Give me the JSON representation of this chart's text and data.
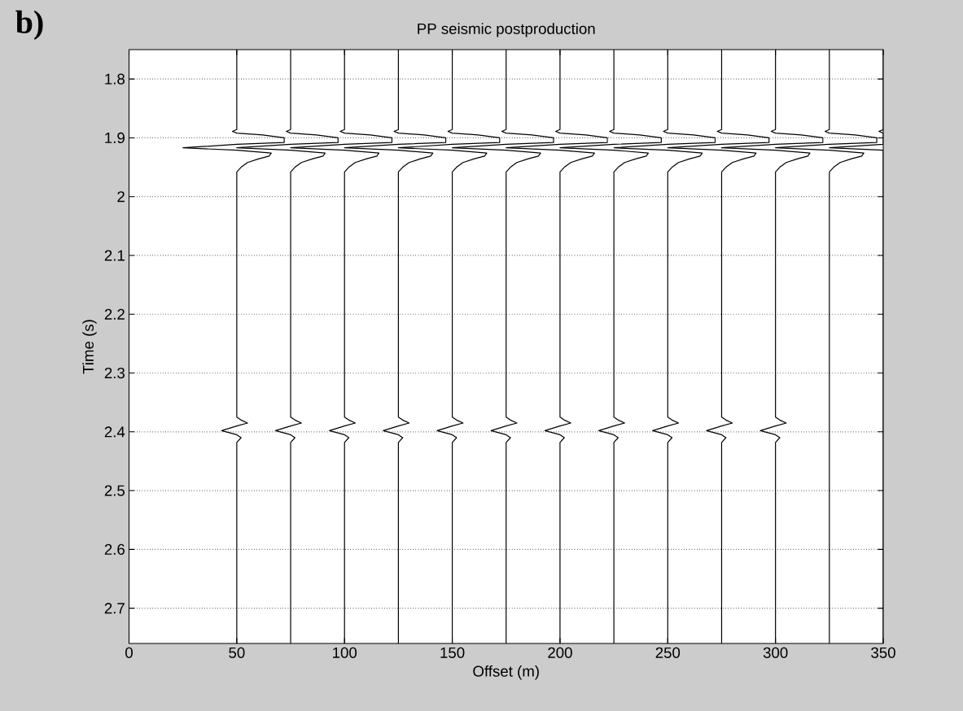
{
  "chart_data": {
    "type": "line",
    "title": "PP seismic postproduction",
    "xlabel": "Offset (m)",
    "ylabel": "Time (s)",
    "annotations": [
      "b)"
    ],
    "xlim": [
      0,
      350
    ],
    "ylim": [
      2.76,
      1.75
    ],
    "xticks": [
      0,
      50,
      100,
      150,
      200,
      250,
      300,
      350
    ],
    "yticks": [
      1.8,
      1.9,
      {
        "value": 2.0,
        "label": "2"
      },
      2.1,
      2.2,
      2.3,
      2.4,
      2.5,
      2.6,
      2.7
    ],
    "grid": "y",
    "color": "#000000",
    "series": [
      {
        "x": [
          50,
          50,
          48,
          50,
          62,
          72,
          72,
          50,
          25,
          50,
          66,
          65,
          60,
          55,
          52,
          50,
          50,
          52,
          55,
          50,
          43,
          50,
          52,
          50,
          50
        ],
        "values": [
          1.75,
          1.886,
          1.889,
          1.892,
          1.895,
          1.9,
          1.908,
          1.911,
          1.917,
          1.921,
          1.926,
          1.931,
          1.936,
          1.942,
          1.95,
          1.958,
          2.375,
          2.38,
          2.385,
          2.39,
          2.398,
          2.405,
          2.41,
          2.418,
          2.76
        ]
      },
      {
        "x": [
          75,
          75,
          73,
          75,
          87,
          97,
          97,
          75,
          50,
          75,
          91,
          90,
          85,
          80,
          77,
          75,
          75,
          77,
          80,
          75,
          68,
          75,
          77,
          75,
          75
        ],
        "values": [
          1.75,
          1.886,
          1.889,
          1.892,
          1.895,
          1.9,
          1.908,
          1.911,
          1.917,
          1.921,
          1.926,
          1.931,
          1.936,
          1.942,
          1.95,
          1.958,
          2.375,
          2.38,
          2.385,
          2.39,
          2.398,
          2.405,
          2.41,
          2.418,
          2.76
        ]
      },
      {
        "x": [
          100,
          100,
          98,
          100,
          112,
          122,
          122,
          100,
          75,
          100,
          116,
          115,
          110,
          105,
          102,
          100,
          100,
          102,
          105,
          100,
          93,
          100,
          102,
          100,
          100
        ],
        "values": [
          1.75,
          1.886,
          1.889,
          1.892,
          1.895,
          1.9,
          1.908,
          1.911,
          1.917,
          1.921,
          1.926,
          1.931,
          1.936,
          1.942,
          1.95,
          1.958,
          2.375,
          2.38,
          2.385,
          2.39,
          2.398,
          2.405,
          2.41,
          2.418,
          2.76
        ]
      },
      {
        "x": [
          125,
          125,
          123,
          125,
          137,
          147,
          147,
          125,
          100,
          125,
          141,
          140,
          135,
          130,
          127,
          125,
          125,
          127,
          130,
          125,
          118,
          125,
          127,
          125,
          125
        ],
        "values": [
          1.75,
          1.886,
          1.889,
          1.892,
          1.895,
          1.9,
          1.908,
          1.911,
          1.917,
          1.921,
          1.926,
          1.931,
          1.936,
          1.942,
          1.95,
          1.958,
          2.375,
          2.38,
          2.385,
          2.39,
          2.398,
          2.405,
          2.41,
          2.418,
          2.76
        ]
      },
      {
        "x": [
          150,
          150,
          148,
          150,
          162,
          172,
          172,
          150,
          125,
          150,
          166,
          165,
          160,
          155,
          152,
          150,
          150,
          152,
          155,
          150,
          143,
          150,
          152,
          150,
          150
        ],
        "values": [
          1.75,
          1.886,
          1.889,
          1.892,
          1.895,
          1.9,
          1.908,
          1.911,
          1.917,
          1.921,
          1.926,
          1.931,
          1.936,
          1.942,
          1.95,
          1.958,
          2.375,
          2.38,
          2.385,
          2.39,
          2.398,
          2.405,
          2.41,
          2.418,
          2.76
        ]
      },
      {
        "x": [
          175,
          175,
          173,
          175,
          187,
          197,
          197,
          175,
          150,
          175,
          191,
          190,
          185,
          180,
          177,
          175,
          175,
          177,
          180,
          175,
          168,
          175,
          177,
          175,
          175
        ],
        "values": [
          1.75,
          1.886,
          1.889,
          1.892,
          1.895,
          1.9,
          1.908,
          1.911,
          1.917,
          1.921,
          1.926,
          1.931,
          1.936,
          1.942,
          1.95,
          1.958,
          2.375,
          2.38,
          2.385,
          2.39,
          2.398,
          2.405,
          2.41,
          2.418,
          2.76
        ]
      },
      {
        "x": [
          200,
          200,
          198,
          200,
          212,
          222,
          222,
          200,
          175,
          200,
          216,
          215,
          210,
          205,
          202,
          200,
          200,
          202,
          205,
          200,
          193,
          200,
          202,
          200,
          200
        ],
        "values": [
          1.75,
          1.886,
          1.889,
          1.892,
          1.895,
          1.9,
          1.908,
          1.911,
          1.917,
          1.921,
          1.926,
          1.931,
          1.936,
          1.942,
          1.95,
          1.958,
          2.375,
          2.38,
          2.385,
          2.39,
          2.398,
          2.405,
          2.41,
          2.418,
          2.76
        ]
      },
      {
        "x": [
          225,
          225,
          223,
          225,
          237,
          247,
          247,
          225,
          200,
          225,
          241,
          240,
          235,
          230,
          227,
          225,
          225,
          227,
          230,
          225,
          218,
          225,
          227,
          225,
          225
        ],
        "values": [
          1.75,
          1.886,
          1.889,
          1.892,
          1.895,
          1.9,
          1.908,
          1.911,
          1.917,
          1.921,
          1.926,
          1.931,
          1.936,
          1.942,
          1.95,
          1.958,
          2.375,
          2.38,
          2.385,
          2.39,
          2.398,
          2.405,
          2.41,
          2.418,
          2.76
        ]
      },
      {
        "x": [
          250,
          250,
          248,
          250,
          262,
          272,
          272,
          250,
          225,
          250,
          266,
          265,
          260,
          255,
          252,
          250,
          250,
          252,
          255,
          250,
          243,
          250,
          252,
          250,
          250
        ],
        "values": [
          1.75,
          1.886,
          1.889,
          1.892,
          1.895,
          1.9,
          1.908,
          1.911,
          1.917,
          1.921,
          1.926,
          1.931,
          1.936,
          1.942,
          1.95,
          1.958,
          2.375,
          2.38,
          2.385,
          2.39,
          2.398,
          2.405,
          2.41,
          2.418,
          2.76
        ]
      },
      {
        "x": [
          275,
          275,
          273,
          275,
          287,
          297,
          297,
          275,
          250,
          275,
          291,
          290,
          285,
          280,
          277,
          275,
          275,
          277,
          280,
          275,
          268,
          275,
          277,
          275,
          275
        ],
        "values": [
          1.75,
          1.886,
          1.889,
          1.892,
          1.895,
          1.9,
          1.908,
          1.911,
          1.917,
          1.921,
          1.926,
          1.931,
          1.936,
          1.942,
          1.95,
          1.958,
          2.375,
          2.38,
          2.385,
          2.39,
          2.398,
          2.405,
          2.41,
          2.418,
          2.76
        ]
      },
      {
        "x": [
          300,
          300,
          298,
          300,
          312,
          322,
          322,
          300,
          275,
          300,
          316,
          315,
          310,
          305,
          302,
          300,
          300,
          302,
          305,
          300,
          293,
          300,
          302,
          300,
          300
        ],
        "values": [
          1.75,
          1.886,
          1.889,
          1.892,
          1.895,
          1.9,
          1.908,
          1.911,
          1.917,
          1.921,
          1.926,
          1.931,
          1.936,
          1.942,
          1.95,
          1.958,
          2.375,
          2.38,
          2.385,
          2.39,
          2.398,
          2.405,
          2.41,
          2.418,
          2.76
        ]
      },
      {
        "x": [
          325,
          325,
          323,
          325,
          337,
          347,
          347,
          325,
          300,
          325,
          341,
          340,
          335,
          330,
          327,
          325,
          325
        ],
        "values": [
          1.75,
          1.886,
          1.889,
          1.892,
          1.895,
          1.9,
          1.908,
          1.911,
          1.917,
          1.921,
          1.926,
          1.931,
          1.936,
          1.942,
          1.95,
          1.958,
          2.76
        ]
      },
      {
        "x": [
          350,
          350,
          348,
          350,
          350,
          325,
          350,
          350
        ],
        "values": [
          1.75,
          1.886,
          1.889,
          1.892,
          1.911,
          1.917,
          1.921,
          2.76
        ]
      }
    ]
  }
}
